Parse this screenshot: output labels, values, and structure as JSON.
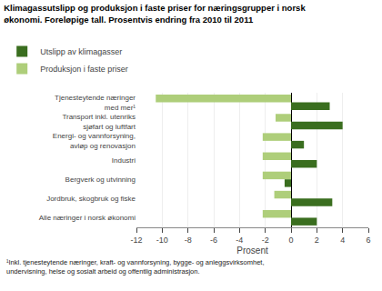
{
  "chart_data": {
    "type": "bar",
    "orientation": "horizontal",
    "title": "Klimagassutslipp og produksjon i faste priser for næringsgrupper i norsk\nøkonomi. Foreløpige tall. Prosentvis endring fra 2010 til 2011",
    "categories": [
      "Alle næringer i norsk økonomi",
      "Jordbruk, skogbruk og fiske",
      "Bergverk og utvinning",
      "Industri",
      "Energi- og vannforsyning,\navløp og renovasjon",
      "Transport inkl. utenriks\nsjøfart og luftfart",
      "Tjenesteytende næringer\nmed mer¹"
    ],
    "series": [
      {
        "name": "Utslipp av klimagasser",
        "color": "#3a6e1f",
        "values": [
          2.0,
          3.2,
          -0.5,
          2.0,
          1.0,
          4.0,
          3.0
        ]
      },
      {
        "name": "Produksjon i faste priser",
        "color": "#aece7a",
        "values": [
          -2.2,
          -1.3,
          -2.2,
          -2.2,
          -2.2,
          -1.2,
          -10.5
        ]
      }
    ],
    "xlabel": "Prosent",
    "xlim": [
      -12,
      6
    ],
    "xticks": [
      -12,
      -10,
      -8,
      -6,
      -4,
      -2,
      0,
      2,
      4,
      6
    ],
    "grid": true,
    "legend": "top",
    "annotations": [
      "¹Inkl. tjenesteytende næringer, kraft- og vannforsyning, bygge- og anleggsvirksomhet,\nundervisning, helse og sosialt arbeid og offentlig administrasjon."
    ]
  }
}
